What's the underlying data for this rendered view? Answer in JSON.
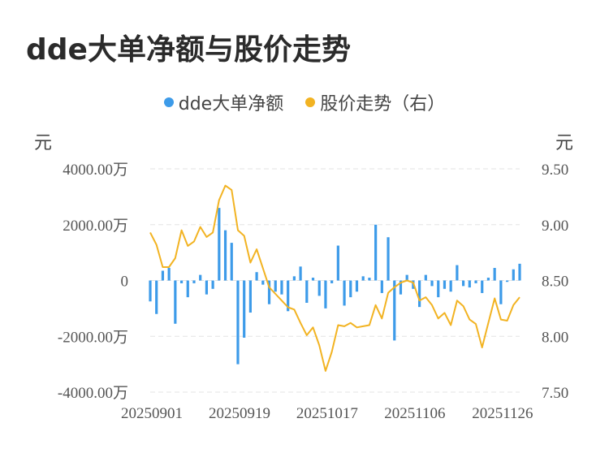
{
  "title": "dde大单净额与股价走势",
  "legend": {
    "bar_label": "dde大单净额",
    "line_label": "股价走势（右）"
  },
  "units": {
    "left": "元",
    "right": "元"
  },
  "colors": {
    "bar": "#3d9be9",
    "line": "#f2b322",
    "grid": "#e3e3e3"
  },
  "chart_data": {
    "type": "bar+line",
    "title": "dde大单净额与股价走势",
    "left_axis": {
      "ticks": [
        4000,
        2000,
        0,
        -2000,
        -4000
      ],
      "tick_labels": [
        "4000.00万",
        "2000.00万",
        "0",
        "-2000.00万",
        "-4000.00万"
      ],
      "ylim": [
        -4000,
        4000
      ]
    },
    "right_axis": {
      "ticks": [
        9.5,
        9.0,
        8.5,
        8.0,
        7.5
      ],
      "tick_labels": [
        "9.50",
        "9.00",
        "8.50",
        "8.00",
        "7.50"
      ],
      "ylim": [
        7.5,
        9.5
      ]
    },
    "x_tick_labels": [
      "20250901",
      "20250919",
      "20251017",
      "20251106",
      "20251126"
    ],
    "x_tick_indices": [
      0,
      14,
      28,
      42,
      56
    ],
    "series": [
      {
        "name": "dde大单净额",
        "type": "bar",
        "values": [
          -750,
          -1200,
          350,
          450,
          -1550,
          -100,
          -600,
          -100,
          200,
          -500,
          -300,
          2600,
          1800,
          1350,
          -3000,
          -2050,
          -1150,
          300,
          -150,
          -850,
          -400,
          -500,
          -1100,
          150,
          500,
          -800,
          100,
          -550,
          -1000,
          -100,
          1250,
          -900,
          -600,
          -400,
          150,
          100,
          2000,
          -450,
          1550,
          -2150,
          -500,
          200,
          -300,
          -950,
          200,
          -200,
          -600,
          -300,
          -400,
          550,
          -200,
          -250,
          -100,
          -450,
          100,
          450,
          -850,
          -50,
          400,
          600
        ]
      },
      {
        "name": "股价走势（右）",
        "type": "line",
        "values": [
          8.93,
          8.82,
          8.62,
          8.62,
          8.7,
          8.95,
          8.81,
          8.85,
          8.98,
          8.89,
          8.93,
          9.22,
          9.35,
          9.31,
          8.95,
          8.9,
          8.66,
          8.78,
          8.61,
          8.44,
          8.38,
          8.32,
          8.26,
          8.24,
          8.12,
          8.01,
          8.08,
          7.92,
          7.69,
          7.86,
          8.1,
          8.09,
          8.12,
          8.08,
          8.09,
          8.1,
          8.28,
          8.16,
          8.39,
          8.44,
          8.48,
          8.5,
          8.48,
          8.32,
          8.35,
          8.28,
          8.16,
          8.21,
          8.1,
          8.32,
          8.27,
          8.15,
          8.11,
          7.9,
          8.12,
          8.34,
          8.15,
          8.14,
          8.28,
          8.35
        ]
      }
    ]
  }
}
